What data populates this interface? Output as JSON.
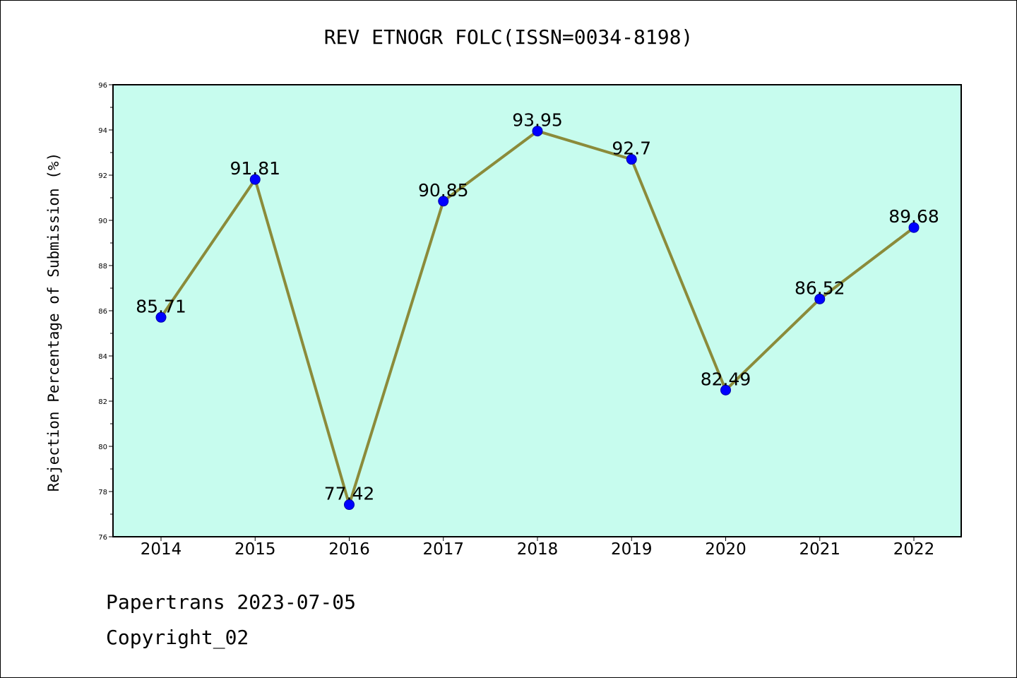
{
  "chart_data": {
    "type": "line",
    "title": "REV ETNOGR FOLC(ISSN=0034-8198)",
    "ylabel": "Rejection Percentage of Submission (%)",
    "xlabel": "",
    "categories": [
      "2014",
      "2015",
      "2016",
      "2017",
      "2018",
      "2019",
      "2020",
      "2021",
      "2022"
    ],
    "values": [
      85.71,
      91.81,
      77.42,
      90.85,
      93.95,
      92.7,
      82.49,
      86.52,
      89.68
    ],
    "data_labels": [
      "85.71",
      "91.81",
      "77.42",
      "90.85",
      "93.95",
      "92.7",
      "82.49",
      "86.52",
      "89.68"
    ],
    "ylim": [
      76,
      96
    ],
    "yticks": [
      76,
      78,
      80,
      82,
      84,
      86,
      88,
      90,
      92,
      94,
      96
    ],
    "grid": false,
    "colors": {
      "plot_background": "#c7fcee",
      "line": "#8b8b3a",
      "marker": "#0000ff",
      "marker_edge": "#0000aa"
    }
  },
  "footer": {
    "line1": "Papertrans 2023-07-05",
    "line2": "Copyright_02"
  }
}
